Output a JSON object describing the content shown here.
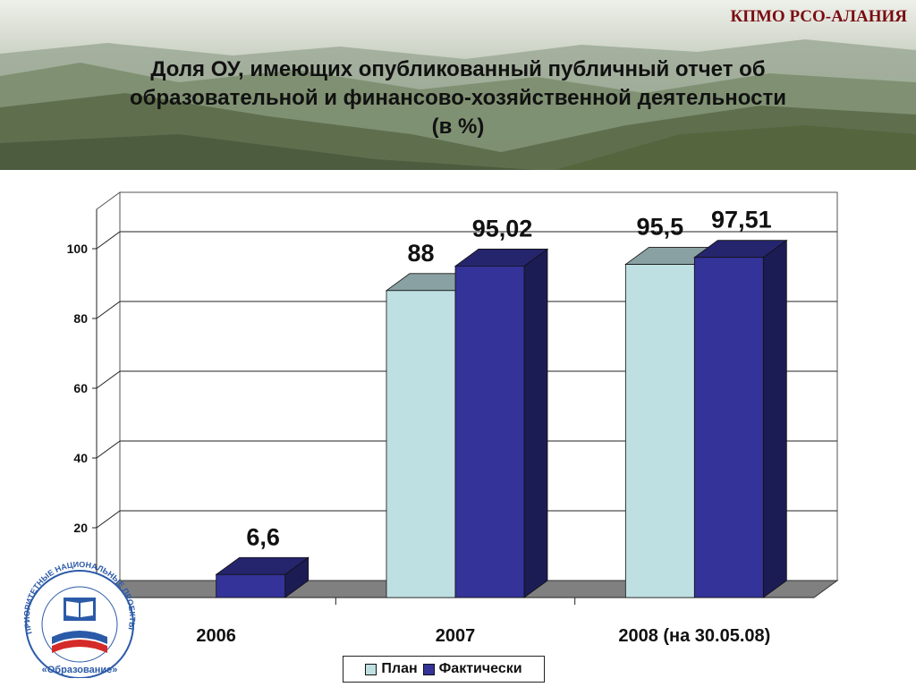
{
  "header": {
    "org": "КПМО РСО-АЛАНИЯ",
    "title_lines": [
      "Доля ОУ, имеющих опубликованный публичный отчет об",
      "образовательной и финансово-хозяйственной деятельности",
      "(в %)"
    ]
  },
  "logo": {
    "arc_text": "ПРИОРИТЕТНЫЕ НАЦИОНАЛЬНЫЕ ПРОЕКТЫ",
    "bottom_text": "«Образование»",
    "icon": "book-icon"
  },
  "colors": {
    "plan": "#bfe0e3",
    "actual": "#333399",
    "floor": "#808080",
    "title_text": "#111111",
    "org_text": "#7a0c12"
  },
  "chart_data": {
    "type": "bar",
    "style": "3d-clustered-column",
    "categories": [
      "2006",
      "2007",
      "2008 (на 30.05.08)"
    ],
    "series": [
      {
        "name": "План",
        "values": [
          null,
          88,
          95.5
        ],
        "labels": [
          "",
          "88",
          "95,5"
        ],
        "color": "#bfe0e3"
      },
      {
        "name": "Фактически",
        "values": [
          6.6,
          95.02,
          97.51
        ],
        "labels": [
          "6,6",
          "95,02",
          "97,51"
        ],
        "color": "#333399"
      }
    ],
    "yticks": [
      "20",
      "40",
      "60",
      "80",
      "100"
    ],
    "ylim": [
      0,
      100
    ],
    "grid": true,
    "legend": "bottom"
  }
}
